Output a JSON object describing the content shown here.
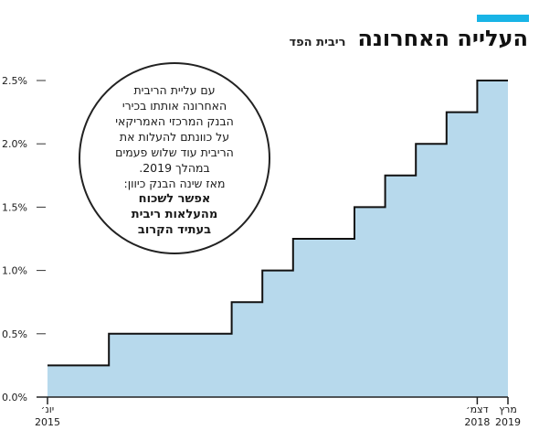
{
  "header": {
    "title": "העלייה האחרונה",
    "subtitle": "ריבית הפד"
  },
  "colors": {
    "accent": "#19b4e6",
    "fill": "#b7d9ec",
    "line": "#111111"
  },
  "callout": {
    "lines": [
      "עם עליית הריבית",
      "האחרונה אותתו בכירי",
      "הבנק המרכזי האמריקאי",
      "על כוונתם להעלות את",
      "הריבית עוד שלוש פעמים",
      "במהלך 2019.",
      "מאז שינה הבנק כיוון:"
    ],
    "bold_lines": [
      "אפשר לשכוח",
      "מהעלאות ריבית",
      "בעתיד הקרוב"
    ]
  },
  "chart_data": {
    "type": "area",
    "style": "step",
    "title": "העלייה האחרונה",
    "subtitle": "ריבית הפד",
    "xlabel": "",
    "ylabel": "",
    "ylim": [
      0,
      2.5
    ],
    "y_ticks": [
      "0.0%",
      "0.5%",
      "1.0%",
      "1.5%",
      "2.0%",
      "2.5%"
    ],
    "x_ticks": [
      {
        "label": "יונ׳",
        "year": "2015"
      },
      {
        "label": "דצמ׳",
        "year": "2018"
      },
      {
        "label": "מרץ",
        "year": "2019"
      }
    ],
    "series": [
      {
        "x": [
          "2015-06",
          "2015-12",
          "2016-12",
          "2017-03",
          "2017-06",
          "2017-12",
          "2018-03",
          "2018-06",
          "2018-09",
          "2018-12",
          "2019-03"
        ],
        "values": [
          0.25,
          0.5,
          0.75,
          1.0,
          1.25,
          1.5,
          1.75,
          2.0,
          2.25,
          2.5,
          2.5
        ]
      }
    ],
    "grid": false
  }
}
